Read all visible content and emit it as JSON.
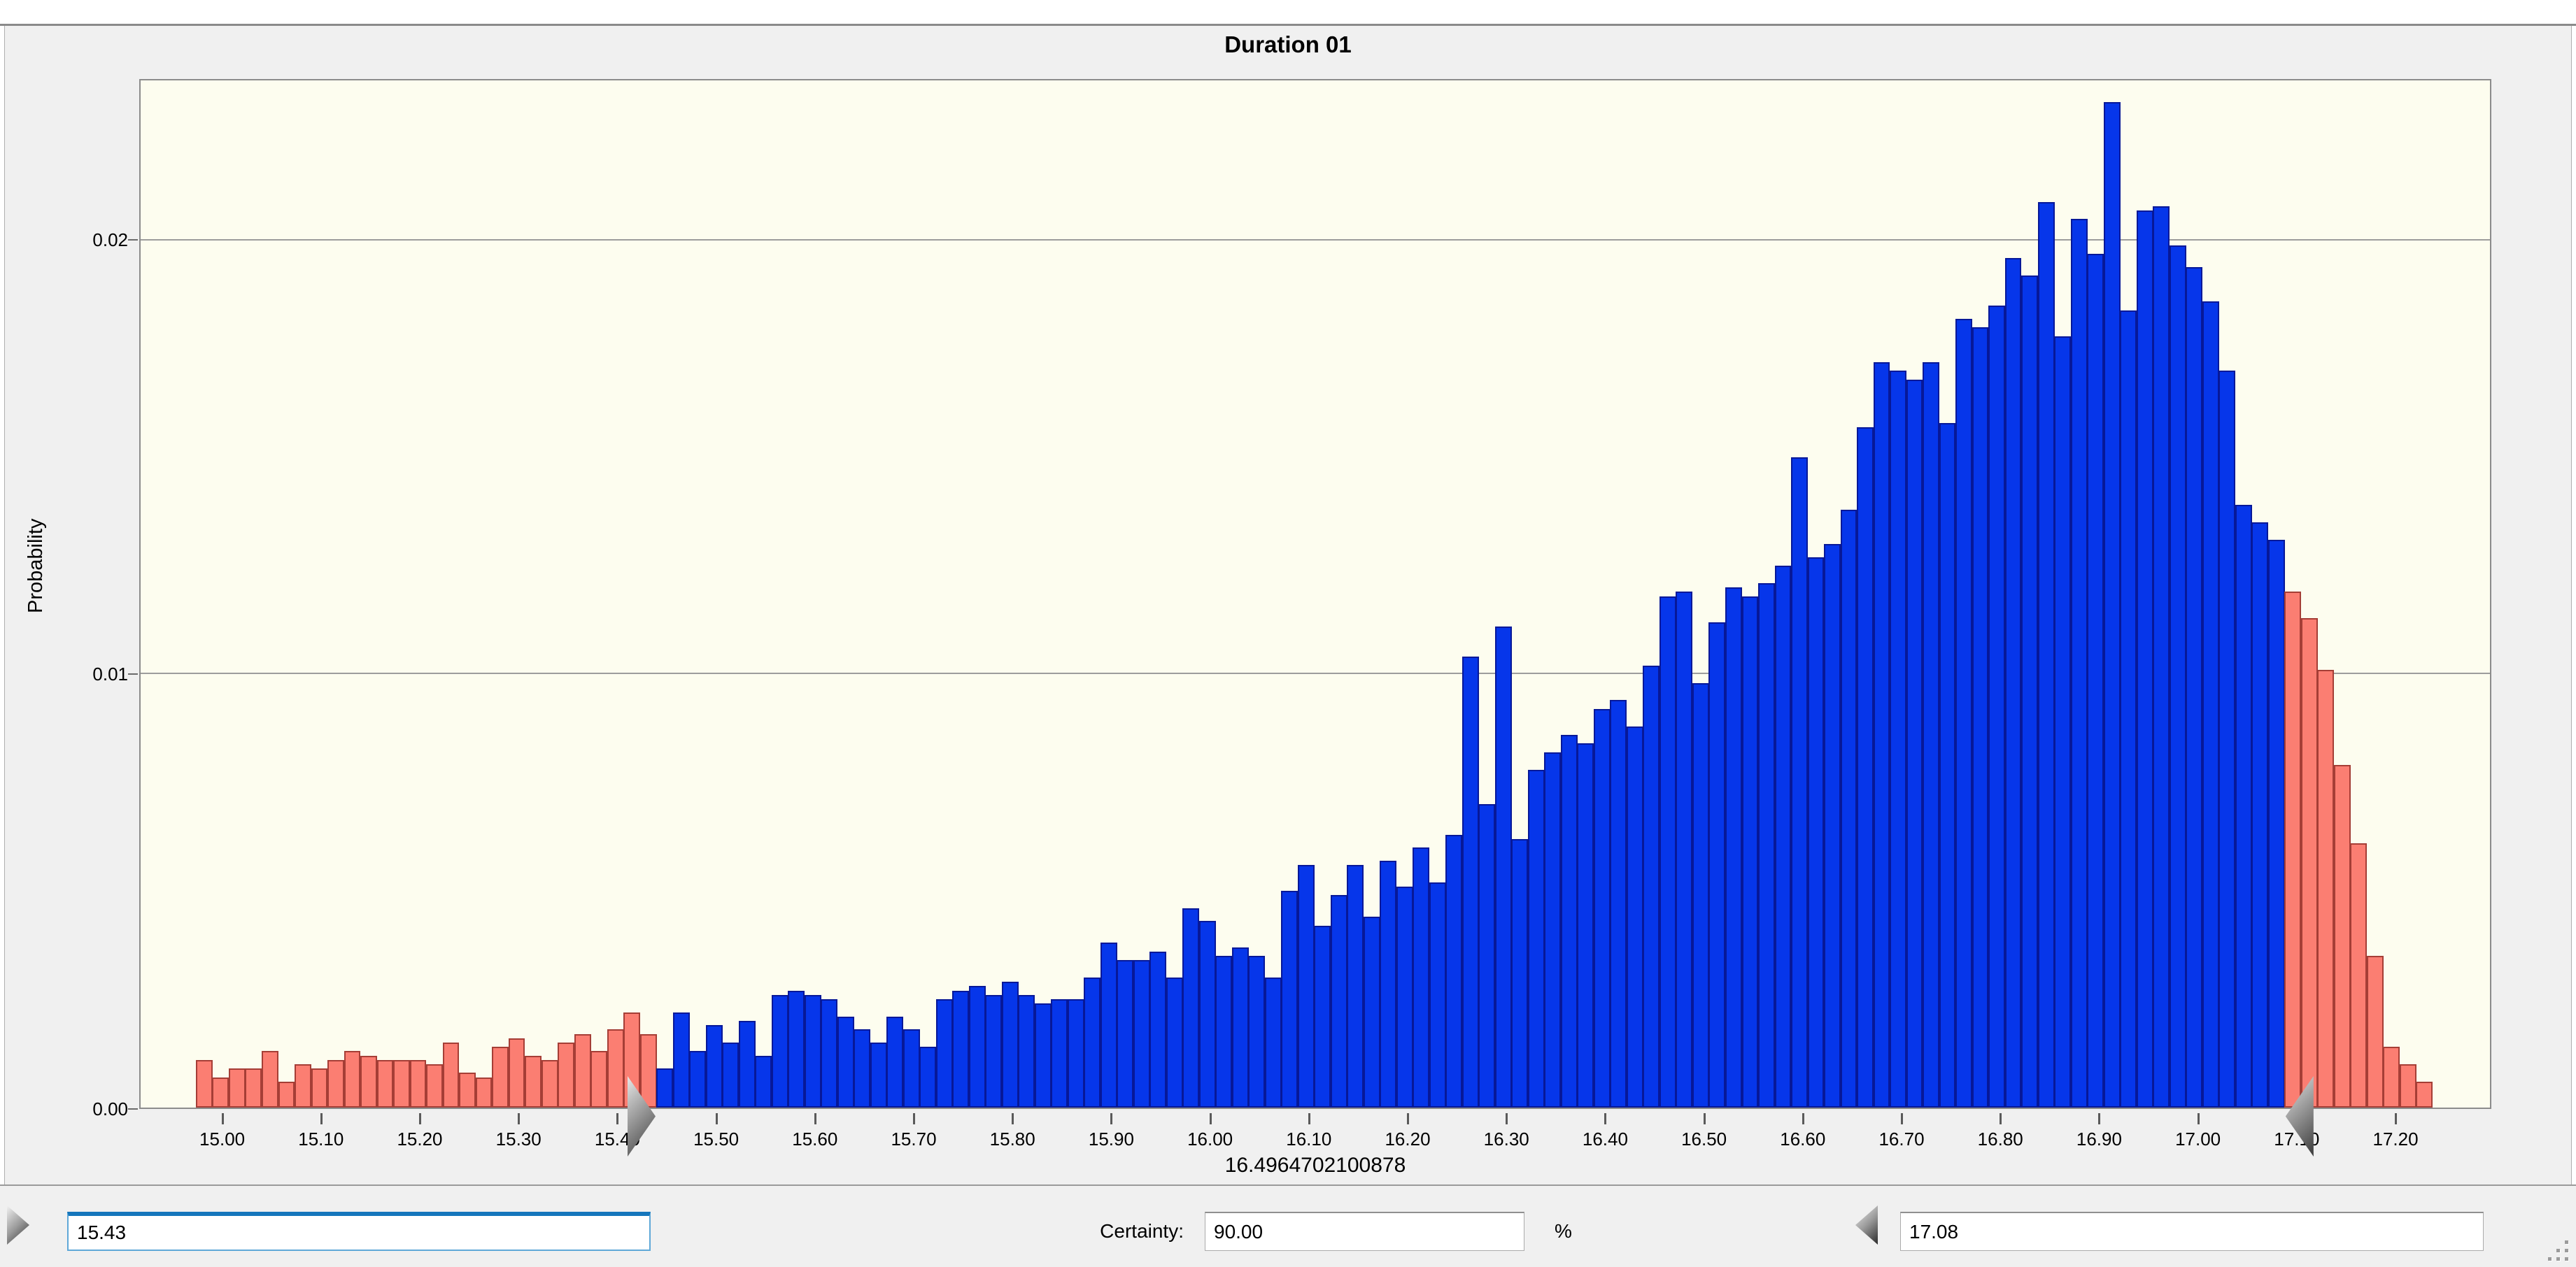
{
  "chart": {
    "title": "Duration 01",
    "ylabel": "Probability",
    "x_caption": "16.4964702100878",
    "y_ticks": [
      {
        "label": "0.00",
        "value": 0
      },
      {
        "label": "0.01",
        "value": 0.01
      },
      {
        "label": "0.02",
        "value": 0.02
      }
    ],
    "x_tick_labels": [
      "15.00",
      "15.10",
      "15.20",
      "15.30",
      "15.40",
      "15.50",
      "15.60",
      "15.70",
      "15.80",
      "15.90",
      "16.00",
      "16.10",
      "16.20",
      "16.30",
      "16.40",
      "16.50",
      "16.60",
      "16.70",
      "16.80",
      "16.90",
      "17.00",
      "17.10",
      "17.20"
    ]
  },
  "chart_data": {
    "type": "bar",
    "subtype": "histogram-forecast",
    "title": "Duration 01",
    "xlabel": "16.4964702100878",
    "ylabel": "Probability",
    "xlim": [
      14.916,
      17.297
    ],
    "ylim": [
      0,
      0.0237
    ],
    "grid_y_values": [
      0.01,
      0.02
    ],
    "bin_start": 14.972,
    "bin_width": 0.0166667,
    "range_min": 15.43,
    "range_max": 17.08,
    "certainty_percent": 90.0,
    "left_tail_red_count": 28,
    "right_tail_red_count": 9,
    "bar_color_selected": "#0636EA",
    "bar_border_selected": "#071898",
    "bar_color_unselected": "#FB7E72",
    "bar_border_unselected": "#A53E36",
    "values": [
      0.0011,
      0.0007,
      0.0009,
      0.0009,
      0.0013,
      0.0006,
      0.001,
      0.0009,
      0.0011,
      0.0013,
      0.0012,
      0.0011,
      0.0011,
      0.0011,
      0.001,
      0.0015,
      0.0008,
      0.0007,
      0.0014,
      0.0016,
      0.0012,
      0.0011,
      0.0015,
      0.0017,
      0.0013,
      0.0018,
      0.0022,
      0.0017,
      0.0009,
      0.0022,
      0.0013,
      0.0019,
      0.0015,
      0.002,
      0.0012,
      0.0026,
      0.0027,
      0.0026,
      0.0025,
      0.0021,
      0.0018,
      0.0015,
      0.0021,
      0.0018,
      0.0014,
      0.0025,
      0.0027,
      0.0028,
      0.0026,
      0.0029,
      0.0026,
      0.0024,
      0.0025,
      0.0025,
      0.003,
      0.0038,
      0.0034,
      0.0034,
      0.0036,
      0.003,
      0.0046,
      0.0043,
      0.0035,
      0.0037,
      0.0035,
      0.003,
      0.005,
      0.0056,
      0.0042,
      0.0049,
      0.0056,
      0.0044,
      0.0057,
      0.0051,
      0.006,
      0.0052,
      0.0063,
      0.0104,
      0.007,
      0.0111,
      0.0062,
      0.0078,
      0.0082,
      0.0086,
      0.0084,
      0.0092,
      0.0094,
      0.0088,
      0.0102,
      0.0118,
      0.0119,
      0.0098,
      0.0112,
      0.012,
      0.0118,
      0.0121,
      0.0125,
      0.015,
      0.0127,
      0.013,
      0.0138,
      0.0157,
      0.0172,
      0.017,
      0.0168,
      0.0172,
      0.0158,
      0.0182,
      0.018,
      0.0185,
      0.0196,
      0.0192,
      0.0209,
      0.0178,
      0.0205,
      0.0197,
      0.0232,
      0.0184,
      0.0207,
      0.0208,
      0.0199,
      0.0194,
      0.0186,
      0.017,
      0.0139,
      0.0135,
      0.0131,
      0.0119,
      0.0113,
      0.0101,
      0.0079,
      0.0061,
      0.0035,
      0.0014,
      0.001,
      0.0006
    ]
  },
  "controls": {
    "min_value": "15.43",
    "certainty_label": "Certainty:",
    "certainty_value": "90.00",
    "percent_label": "%",
    "max_value": "17.08"
  }
}
